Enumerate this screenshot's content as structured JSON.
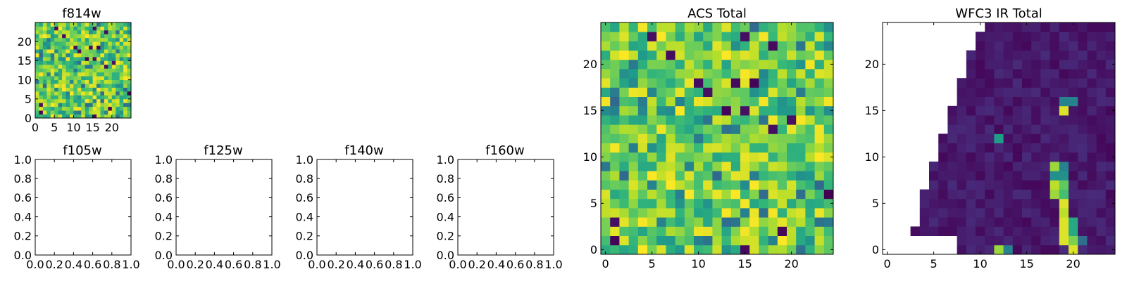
{
  "chart_data": [
    {
      "id": "f814w",
      "type": "heatmap",
      "title": "f814w",
      "grid_size": 25,
      "xlim": [
        0,
        25
      ],
      "ylim": [
        0,
        25
      ],
      "x_ticks": [
        0,
        5,
        10,
        15,
        20
      ],
      "y_ticks": [
        0,
        5,
        10,
        15,
        20
      ],
      "colormap": "viridis",
      "values_desc": "noisy field, mostly green-yellow with scattered dark purple and blue pixels"
    },
    {
      "id": "f105w",
      "type": "heatmap",
      "title": "f105w",
      "empty": true,
      "xlim": [
        0.0,
        1.0
      ],
      "ylim": [
        0.0,
        1.0
      ],
      "x_ticks": [
        "0.0",
        "0.2",
        "0.4",
        "0.6",
        "0.8",
        "1.0"
      ],
      "y_ticks": [
        "0.0",
        "0.2",
        "0.4",
        "0.6",
        "0.8",
        "1.0"
      ]
    },
    {
      "id": "f125w",
      "type": "heatmap",
      "title": "f125w",
      "empty": true,
      "xlim": [
        0.0,
        1.0
      ],
      "ylim": [
        0.0,
        1.0
      ],
      "x_ticks": [
        "0.0",
        "0.2",
        "0.4",
        "0.6",
        "0.8",
        "1.0"
      ],
      "y_ticks": [
        "0.0",
        "0.2",
        "0.4",
        "0.6",
        "0.8",
        "1.0"
      ]
    },
    {
      "id": "f140w",
      "type": "heatmap",
      "title": "f140w",
      "empty": true,
      "xlim": [
        0.0,
        1.0
      ],
      "ylim": [
        0.0,
        1.0
      ],
      "x_ticks": [
        "0.0",
        "0.2",
        "0.4",
        "0.6",
        "0.8",
        "1.0"
      ],
      "y_ticks": [
        "0.0",
        "0.2",
        "0.4",
        "0.6",
        "0.8",
        "1.0"
      ]
    },
    {
      "id": "f160w",
      "type": "heatmap",
      "title": "f160w",
      "empty": true,
      "xlim": [
        0.0,
        1.0
      ],
      "ylim": [
        0.0,
        1.0
      ],
      "x_ticks": [
        "0.0",
        "0.2",
        "0.4",
        "0.6",
        "0.8",
        "1.0"
      ],
      "y_ticks": [
        "0.0",
        "0.2",
        "0.4",
        "0.6",
        "0.8",
        "1.0"
      ]
    },
    {
      "id": "acs",
      "type": "heatmap",
      "title": "ACS Total",
      "grid_size": 25,
      "xlim": [
        -0.5,
        24.5
      ],
      "ylim": [
        -0.5,
        24.5
      ],
      "x_ticks": [
        0,
        5,
        10,
        15,
        20
      ],
      "y_ticks": [
        0,
        5,
        10,
        15,
        20
      ],
      "colormap": "viridis",
      "values_desc": "same noisy field as f814w, green-yellow with scattered dark pixels"
    },
    {
      "id": "wfc3",
      "type": "heatmap",
      "title": "WFC3 IR Total",
      "grid_size": 25,
      "xlim": [
        -0.5,
        24.5
      ],
      "ylim": [
        -0.5,
        24.5
      ],
      "x_ticks": [
        0,
        5,
        10,
        15,
        20
      ],
      "y_ticks": [
        0,
        5,
        10,
        15,
        20
      ],
      "colormap": "viridis",
      "masked_region": "upper-left triangle (NaN / white)",
      "hotspots": [
        {
          "x": 12,
          "y": 0,
          "value": 0.85
        },
        {
          "x": 13,
          "y": 0,
          "value": 0.45
        },
        {
          "x": 12,
          "y": 12,
          "value": 0.55
        },
        {
          "x": 19,
          "y": 15,
          "value": 0.95
        },
        {
          "x": 19,
          "y": 16,
          "value": 0.45
        },
        {
          "x": 20,
          "y": 16,
          "value": 0.45
        },
        {
          "x": 18,
          "y": 6,
          "value": 0.85
        },
        {
          "x": 18,
          "y": 7,
          "value": 0.9
        },
        {
          "x": 18,
          "y": 8,
          "value": 0.5
        },
        {
          "x": 18,
          "y": 9,
          "value": 0.85
        },
        {
          "x": 19,
          "y": 1,
          "value": 0.95
        },
        {
          "x": 19,
          "y": 2,
          "value": 0.95
        },
        {
          "x": 19,
          "y": 3,
          "value": 0.95
        },
        {
          "x": 19,
          "y": 4,
          "value": 0.9
        },
        {
          "x": 19,
          "y": 5,
          "value": 0.95
        },
        {
          "x": 19,
          "y": 6,
          "value": 0.7
        },
        {
          "x": 19,
          "y": 7,
          "value": 0.75
        },
        {
          "x": 19,
          "y": 8,
          "value": 0.5
        },
        {
          "x": 19,
          "y": 9,
          "value": 0.45
        },
        {
          "x": 20,
          "y": 0,
          "value": 0.95
        },
        {
          "x": 20,
          "y": 1,
          "value": 0.8
        },
        {
          "x": 20,
          "y": 2,
          "value": 0.6
        },
        {
          "x": 20,
          "y": 3,
          "value": 0.6
        },
        {
          "x": 21,
          "y": 1,
          "value": 0.35
        }
      ]
    }
  ]
}
